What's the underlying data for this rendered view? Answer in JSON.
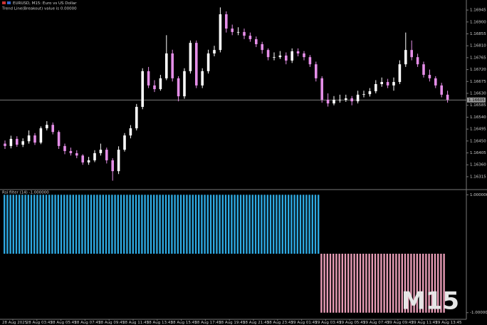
{
  "chart_data": [
    {
      "type": "candlestick",
      "title": "EURUSD, M15:  Euro vs US Dollar",
      "subtitle": "Trend Line(Breakout) value is 0.00000",
      "up_color": "#ffffff",
      "down_color": "#e58ee8",
      "open": [
        1.1644,
        1.16431,
        1.16458,
        1.16436,
        1.16449,
        1.16471,
        1.16444,
        1.16498,
        1.16511,
        1.16484,
        1.16431,
        1.16412,
        1.16404,
        1.16395,
        1.16369,
        1.16377,
        1.16404,
        1.16417,
        1.16377,
        1.16336,
        1.16417,
        1.16471,
        1.16498,
        1.16579,
        1.16714,
        1.1666,
        1.16646,
        1.16687,
        1.16781,
        1.16687,
        1.16619,
        1.16714,
        1.16821,
        1.1666,
        1.16714,
        1.16781,
        1.16794,
        1.16929,
        1.16875,
        1.16862,
        1.16862,
        1.16848,
        1.16835,
        1.16816,
        1.16794,
        1.16767,
        1.16767,
        1.16773,
        1.16754,
        1.16789,
        1.16781,
        1.16767,
        1.1674,
        1.16687,
        1.16606,
        1.16592,
        1.16606,
        1.16606,
        1.16611,
        1.166,
        1.16625,
        1.16627,
        1.16638,
        1.16665,
        1.16673,
        1.1666,
        1.16673,
        1.1674,
        1.16794,
        1.16767,
        1.1674,
        1.167,
        1.16687,
        1.1666,
        1.16625
      ],
      "high": [
        1.16452,
        1.1647,
        1.16468,
        1.1646,
        1.1649,
        1.1648,
        1.16505,
        1.16525,
        1.1652,
        1.1649,
        1.1644,
        1.16425,
        1.16415,
        1.164,
        1.1639,
        1.16415,
        1.1644,
        1.16425,
        1.16385,
        1.1643,
        1.1648,
        1.1651,
        1.1659,
        1.16725,
        1.1673,
        1.1668,
        1.167,
        1.1685,
        1.16795,
        1.16695,
        1.16725,
        1.1683,
        1.1683,
        1.16725,
        1.16795,
        1.1681,
        1.16955,
        1.1694,
        1.1689,
        1.1688,
        1.16875,
        1.1686,
        1.16845,
        1.16825,
        1.168,
        1.16785,
        1.1679,
        1.16785,
        1.168,
        1.168,
        1.1679,
        1.16775,
        1.1675,
        1.16695,
        1.1663,
        1.1662,
        1.16625,
        1.16625,
        1.1662,
        1.1664,
        1.1664,
        1.1665,
        1.1668,
        1.1669,
        1.16685,
        1.1669,
        1.16755,
        1.1686,
        1.1683,
        1.1678,
        1.1675,
        1.1672,
        1.16695,
        1.1667,
        1.1664
      ],
      "low": [
        1.1642,
        1.16422,
        1.16428,
        1.16427,
        1.1644,
        1.16435,
        1.16438,
        1.1649,
        1.16475,
        1.1642,
        1.164,
        1.16395,
        1.16385,
        1.1636,
        1.1636,
        1.1637,
        1.16395,
        1.16365,
        1.163,
        1.16325,
        1.1641,
        1.1646,
        1.1649,
        1.1657,
        1.1665,
        1.16635,
        1.1664,
        1.1668,
        1.16675,
        1.166,
        1.1661,
        1.16705,
        1.1665,
        1.1665,
        1.16705,
        1.1677,
        1.16785,
        1.1686,
        1.1685,
        1.1685,
        1.16835,
        1.16825,
        1.16805,
        1.1678,
        1.16755,
        1.16755,
        1.1676,
        1.1674,
        1.16745,
        1.1677,
        1.16755,
        1.1673,
        1.16675,
        1.16595,
        1.1658,
        1.16585,
        1.16595,
        1.16598,
        1.16585,
        1.16592,
        1.16615,
        1.16618,
        1.1663,
        1.16655,
        1.1665,
        1.1664,
        1.16665,
        1.1673,
        1.16755,
        1.1673,
        1.1669,
        1.16675,
        1.1665,
        1.16615,
        1.16595
      ],
      "close": [
        1.16431,
        1.16458,
        1.16436,
        1.16449,
        1.16471,
        1.16444,
        1.16498,
        1.16511,
        1.16484,
        1.16431,
        1.16412,
        1.16404,
        1.16395,
        1.16369,
        1.16377,
        1.16404,
        1.16417,
        1.16377,
        1.16336,
        1.16417,
        1.16471,
        1.16498,
        1.16579,
        1.16714,
        1.1666,
        1.16646,
        1.16687,
        1.16781,
        1.16687,
        1.16619,
        1.16714,
        1.16821,
        1.1666,
        1.16714,
        1.16781,
        1.16794,
        1.16929,
        1.16875,
        1.16862,
        1.16862,
        1.16848,
        1.16835,
        1.16816,
        1.16794,
        1.16767,
        1.16767,
        1.16773,
        1.16754,
        1.16789,
        1.16781,
        1.16767,
        1.1674,
        1.16687,
        1.16606,
        1.16592,
        1.16606,
        1.16606,
        1.16611,
        1.166,
        1.16625,
        1.16627,
        1.16638,
        1.16665,
        1.16673,
        1.1666,
        1.16673,
        1.1674,
        1.16794,
        1.16767,
        1.1674,
        1.167,
        1.16687,
        1.1666,
        1.16625,
        1.16606
      ],
      "ylim": [
        1.16269,
        1.16983
      ],
      "yticks": [
        {
          "value": 1.16945,
          "label": "1.16945"
        },
        {
          "value": 1.169,
          "label": "1.16900"
        },
        {
          "value": 1.16855,
          "label": "1.16855"
        },
        {
          "value": 1.1681,
          "label": "1.16810"
        },
        {
          "value": 1.16765,
          "label": "1.16765"
        },
        {
          "value": 1.1672,
          "label": "1.16720"
        },
        {
          "value": 1.16675,
          "label": "1.16675"
        },
        {
          "value": 1.1663,
          "label": "1.16630"
        },
        {
          "value": 1.16585,
          "label": "1.16585"
        },
        {
          "value": 1.1654,
          "label": "1.16540"
        },
        {
          "value": 1.16495,
          "label": "1.16495"
        },
        {
          "value": 1.1645,
          "label": "1.16450"
        },
        {
          "value": 1.16405,
          "label": "1.16405"
        },
        {
          "value": 1.1636,
          "label": "1.16360"
        },
        {
          "value": 1.16315,
          "label": "1.16315"
        }
      ],
      "price_line": {
        "value": 1.16605,
        "label": "1.16605"
      }
    },
    {
      "type": "histogram",
      "title": "Rsi filter (14) -1.000000",
      "pos_color": "#2ea8e0",
      "neg_color": "#e79bb5",
      "values": [
        1,
        1,
        1,
        1,
        1,
        1,
        1,
        1,
        1,
        1,
        1,
        1,
        1,
        1,
        1,
        1,
        1,
        1,
        1,
        1,
        1,
        1,
        1,
        1,
        1,
        1,
        1,
        1,
        1,
        1,
        1,
        1,
        1,
        1,
        1,
        1,
        1,
        1,
        1,
        1,
        1,
        1,
        1,
        1,
        1,
        1,
        1,
        1,
        1,
        1,
        1,
        1,
        1,
        1,
        1,
        1,
        1,
        1,
        1,
        1,
        1,
        1,
        1,
        1,
        1,
        1,
        1,
        1,
        1,
        1,
        1,
        1,
        1,
        1,
        1,
        1,
        1,
        1,
        1,
        1,
        1,
        1,
        1,
        1,
        1,
        1,
        1,
        1,
        1,
        1,
        1,
        1,
        1,
        1,
        1,
        1,
        1,
        1,
        1,
        1,
        1,
        1,
        1,
        1,
        1,
        1,
        -1,
        -1,
        -1,
        -1,
        -1,
        -1,
        -1,
        -1,
        -1,
        -1,
        -1,
        -1,
        -1,
        -1,
        -1,
        -1,
        -1,
        -1,
        -1,
        -1,
        -1,
        -1,
        -1,
        -1,
        -1,
        -1,
        -1,
        -1,
        -1,
        -1,
        -1,
        -1,
        -1,
        -1,
        -1,
        -1,
        -1,
        -1,
        -1,
        -1,
        -1,
        -1
      ],
      "ylim": [
        -1.1,
        1.1
      ],
      "yticks": [
        {
          "value": 1,
          "label": "1.000000"
        },
        {
          "value": -1,
          "label": "-1.000000"
        }
      ],
      "x_tick_labels": [
        "28 Aug 2025",
        "28 Aug 03:45",
        "28 Aug 05:45",
        "28 Aug 07:45",
        "28 Aug 09:45",
        "28 Aug 11:45",
        "28 Aug 13:45",
        "28 Aug 15:45",
        "28 Aug 17:45",
        "28 Aug 19:45",
        "28 Aug 21:45",
        "28 Aug 23:45",
        "29 Aug 01:45",
        "29 Aug 03:45",
        "29 Aug 05:45",
        "29 Aug 07:45",
        "29 Aug 09:45",
        "29 Aug 11:45",
        "29 Aug 13:45"
      ],
      "watermark": "M15"
    }
  ]
}
